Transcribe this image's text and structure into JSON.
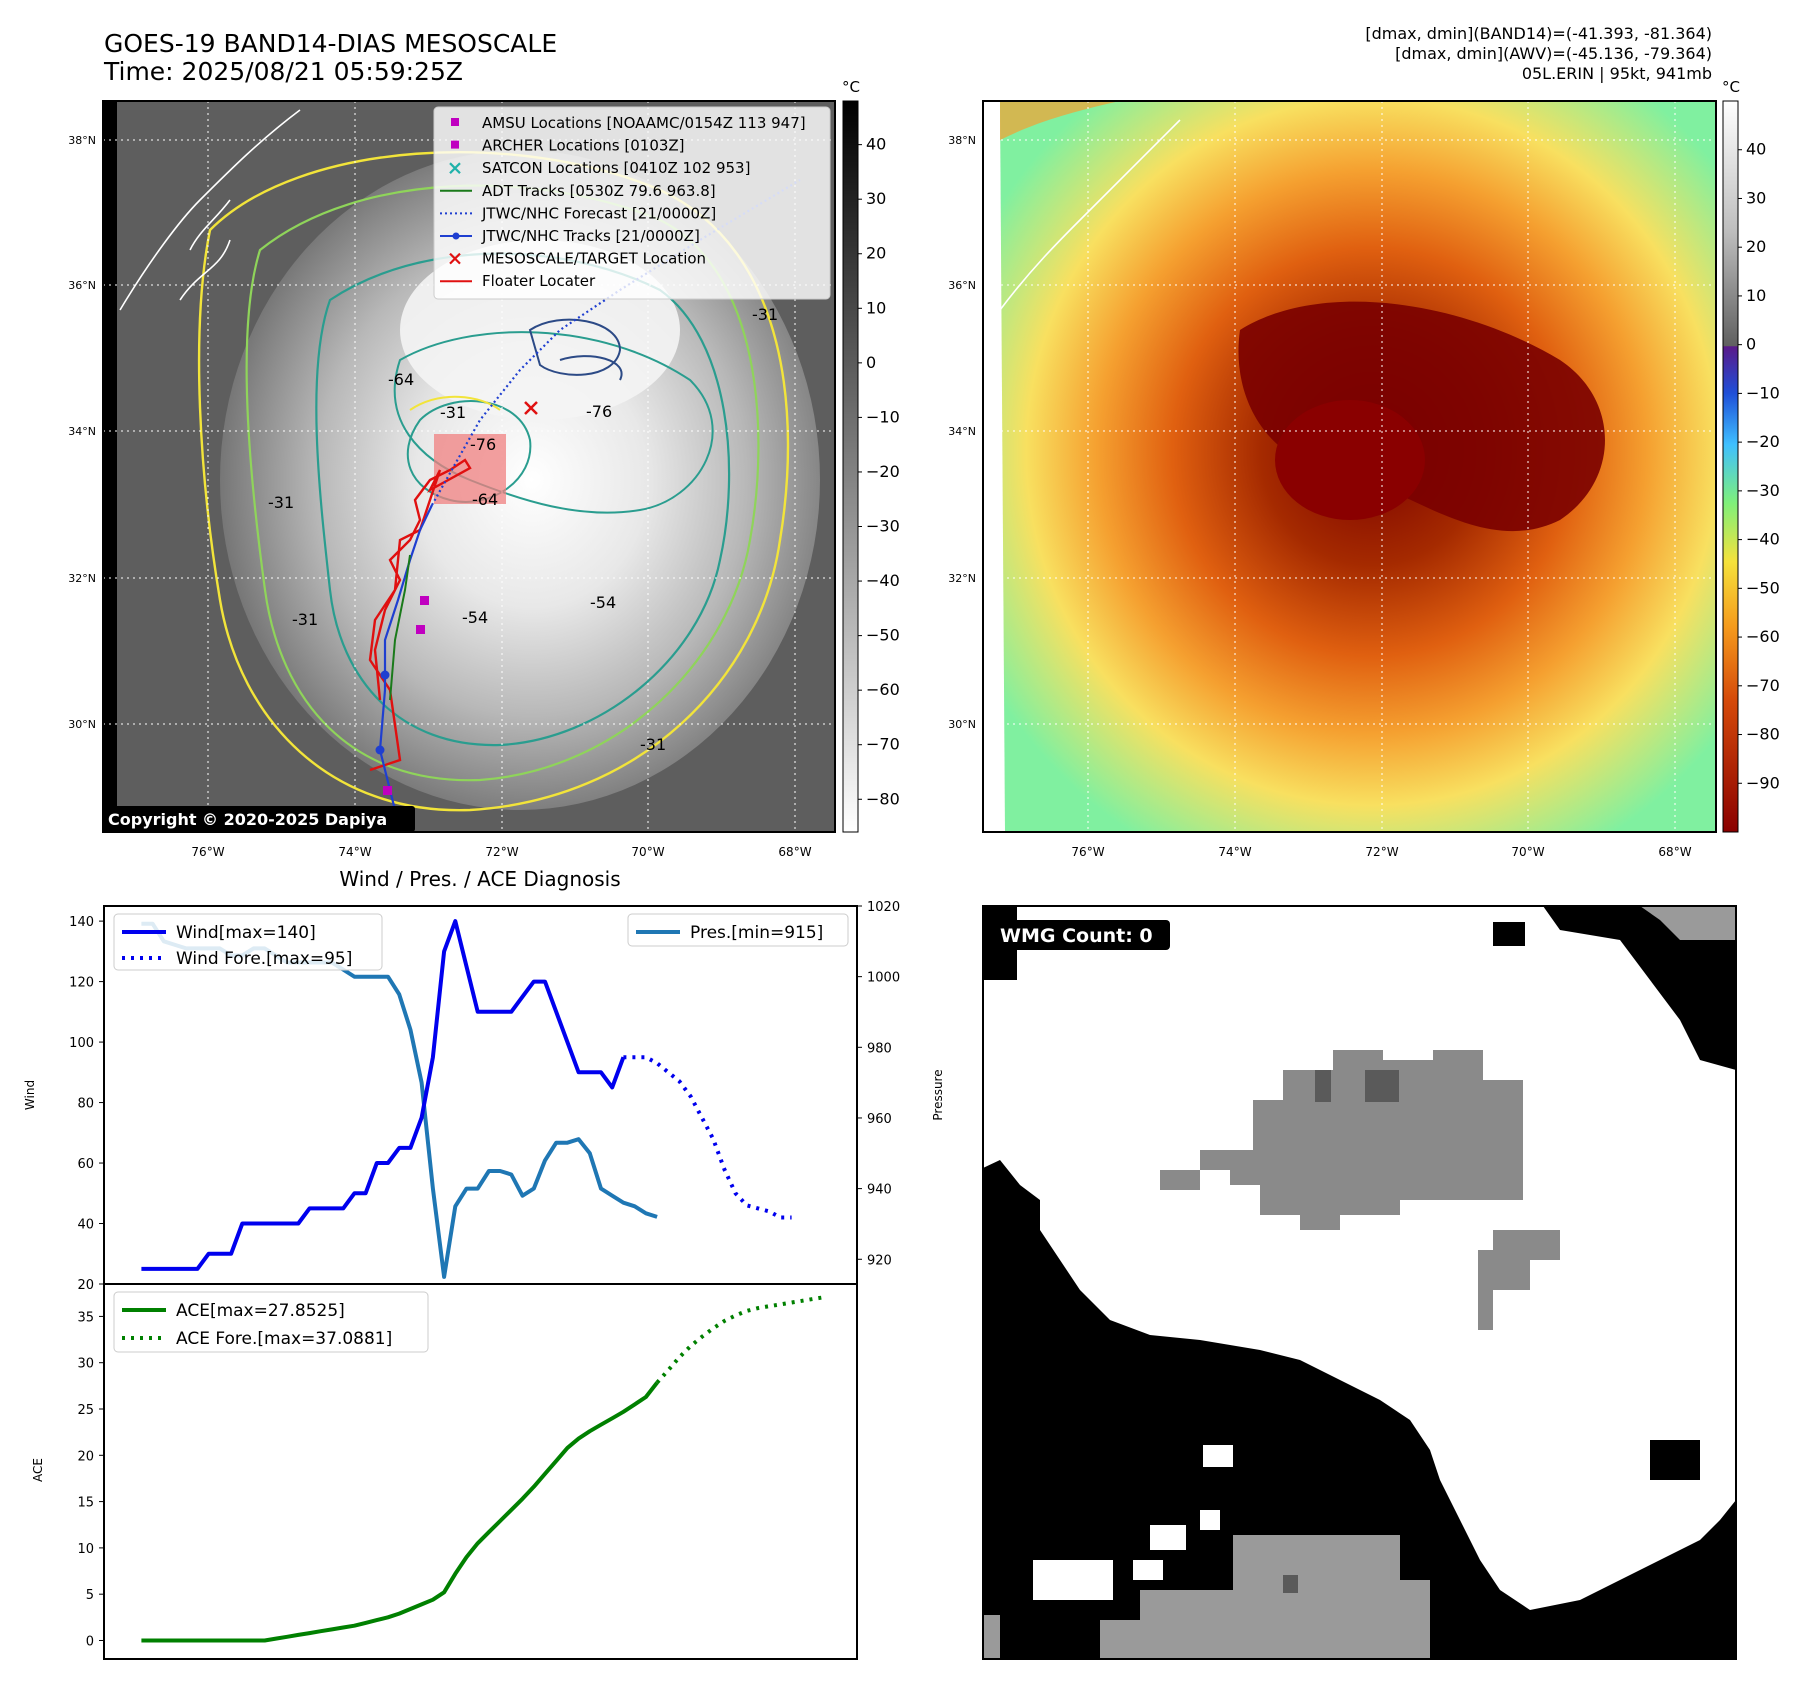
{
  "header": {
    "title_line1": "GOES-19 BAND14-DIAS MESOSCALE",
    "title_line2": "Time: 2025/08/21 05:59:25Z",
    "info_line1": "[dmax, dmin](BAND14)=(-41.393, -81.364)",
    "info_line2": "[dmax, dmin](AWV)=(-45.136, -79.364)",
    "info_line3": "05L.ERIN | 95kt, 941mb"
  },
  "map": {
    "lat_ticks": [
      "38°N",
      "36°N",
      "34°N",
      "32°N",
      "30°N"
    ],
    "lon_ticks": [
      "76°W",
      "74°W",
      "72°W",
      "70°W",
      "68°W"
    ],
    "contour_labels": [
      "-31",
      "-64",
      "-31",
      "-76",
      "-76",
      "-64",
      "-31",
      "-54",
      "-54",
      "-31",
      "-31"
    ],
    "copyright": "Copyright © 2020-2025 Dapiya",
    "colors": {
      "ir_bg": "#6f6f6f",
      "contour_yellow": "#f2e43a",
      "contour_green": "#8fd45a",
      "contour_teal": "#2a9d8f",
      "contour_navy": "#2c4a86"
    }
  },
  "legend_map": [
    {
      "label": "AMSU Locations [NOAAMC/0154Z 113 947]",
      "marker": "square",
      "color": "#c000c0"
    },
    {
      "label": "ARCHER Locations [0103Z]",
      "marker": "square",
      "color": "#c000c0"
    },
    {
      "label": "SATCON Locations [0410Z 102 953]",
      "marker": "x",
      "color": "#20b2aa"
    },
    {
      "label": "ADT Tracks [0530Z 79.6 963.8]",
      "marker": "line",
      "color": "#1a7a1a"
    },
    {
      "label": "JTWC/NHC Forecast [21/0000Z]",
      "marker": "dotted",
      "color": "#1f3fd0"
    },
    {
      "label": "JTWC/NHC Tracks [21/0000Z]",
      "marker": "line-dot",
      "color": "#1f3fd0"
    },
    {
      "label": "MESOSCALE/TARGET Location",
      "marker": "x",
      "color": "#e01010"
    },
    {
      "label": "Floater Locater",
      "marker": "line",
      "color": "#e01010"
    }
  ],
  "colorbar_left": {
    "unit": "°C",
    "ticks": [
      "40",
      "30",
      "20",
      "10",
      "0",
      "−10",
      "−20",
      "−30",
      "−40",
      "−50",
      "−60",
      "−70",
      "−80"
    ]
  },
  "colorbar_right": {
    "unit": "°C",
    "ticks": [
      "40",
      "30",
      "20",
      "10",
      "0",
      "−10",
      "−20",
      "−30",
      "−40",
      "−50",
      "−60",
      "−70",
      "−80",
      "−90"
    ]
  },
  "wmg": {
    "label": "WMG Count: 0"
  },
  "chart_data": [
    {
      "type": "line",
      "title": "Wind / Pres. / ACE Diagnosis",
      "ylabel": "Wind",
      "y2label": "Pressure",
      "ylim": [
        20,
        145
      ],
      "y2lim": [
        913,
        1020
      ],
      "yticks": [
        "20",
        "40",
        "60",
        "80",
        "100",
        "120",
        "140"
      ],
      "y2ticks": [
        "920",
        "940",
        "960",
        "980",
        "1000",
        "1020"
      ],
      "legend_left": [
        "Wind[max=140]",
        "Wind Fore.[max=95]"
      ],
      "legend_right": [
        "Pres.[min=915]"
      ],
      "series": [
        {
          "name": "Wind[max=140]",
          "color": "#0000ee",
          "style": "solid",
          "axis": "left",
          "x": [
            0,
            6,
            12,
            18,
            24,
            30,
            36,
            42,
            48,
            54,
            60,
            66,
            72,
            78,
            84,
            90,
            96,
            102,
            108,
            114,
            120,
            126,
            132,
            138,
            144,
            150,
            156,
            162,
            168,
            174,
            180,
            186,
            192,
            198,
            204,
            210,
            216,
            222,
            228,
            234,
            240,
            246,
            252,
            258
          ],
          "y": [
            25,
            25,
            25,
            25,
            25,
            25,
            30,
            30,
            30,
            40,
            40,
            40,
            40,
            40,
            40,
            45,
            45,
            45,
            45,
            50,
            50,
            60,
            60,
            65,
            65,
            75,
            95,
            130,
            140,
            125,
            110,
            110,
            110,
            110,
            115,
            120,
            120,
            110,
            100,
            90,
            90,
            90,
            85,
            95
          ]
        },
        {
          "name": "Wind Fore.[max=95]",
          "color": "#0000ee",
          "style": "dotted",
          "axis": "left",
          "x": [
            258,
            264,
            270,
            276,
            282,
            288,
            294,
            300,
            306,
            312,
            318,
            324,
            330,
            336,
            342,
            348
          ],
          "y": [
            95,
            95,
            95,
            93,
            90,
            87,
            82,
            75,
            68,
            58,
            50,
            46,
            45,
            44,
            42,
            42
          ]
        },
        {
          "name": "Pres.[min=915]",
          "color": "#1f77b4",
          "style": "solid",
          "axis": "right",
          "x": [
            0,
            6,
            12,
            18,
            24,
            30,
            36,
            42,
            48,
            54,
            60,
            66,
            72,
            78,
            84,
            90,
            96,
            102,
            108,
            114,
            120,
            126,
            132,
            138,
            144,
            150,
            156,
            162,
            168,
            174,
            180,
            186,
            192,
            198,
            204,
            210,
            216,
            222,
            228,
            234,
            240,
            246,
            252,
            258,
            264,
            270,
            276
          ],
          "y": [
            1015,
            1015,
            1010,
            1009,
            1008,
            1008,
            1008,
            1008,
            1006,
            1006,
            1008,
            1008,
            1006,
            1004,
            1004,
            1004,
            1004,
            1004,
            1002,
            1000,
            1000,
            1000,
            1000,
            995,
            985,
            970,
            940,
            915,
            935,
            940,
            940,
            945,
            945,
            944,
            938,
            940,
            948,
            953,
            953,
            954,
            950,
            940,
            938,
            936,
            935,
            933,
            932
          ]
        }
      ]
    },
    {
      "type": "line",
      "ylabel": "ACE",
      "ylim": [
        -2,
        38.5
      ],
      "yticks": [
        "0",
        "5",
        "10",
        "15",
        "20",
        "25",
        "30",
        "35"
      ],
      "legend": [
        "ACE[max=27.8525]",
        "ACE Fore.[max=37.0881]"
      ],
      "series": [
        {
          "name": "ACE[max=27.8525]",
          "color": "#008000",
          "style": "solid",
          "x": [
            0,
            6,
            12,
            18,
            24,
            30,
            36,
            42,
            48,
            54,
            60,
            66,
            72,
            78,
            84,
            90,
            96,
            102,
            108,
            114,
            120,
            126,
            132,
            138,
            144,
            150,
            156,
            162,
            168,
            174,
            180,
            186,
            192,
            198,
            204,
            210,
            216,
            222,
            228,
            234,
            240,
            246,
            252,
            258,
            264,
            270,
            276
          ],
          "y": [
            0,
            0,
            0,
            0,
            0,
            0,
            0,
            0,
            0,
            0,
            0,
            0,
            0.2,
            0.4,
            0.6,
            0.8,
            1.0,
            1.2,
            1.4,
            1.6,
            1.9,
            2.2,
            2.5,
            2.9,
            3.4,
            3.9,
            4.4,
            5.2,
            7.2,
            9.0,
            10.5,
            11.7,
            12.9,
            14.1,
            15.3,
            16.6,
            18.0,
            19.4,
            20.8,
            21.8,
            22.6,
            23.3,
            24.0,
            24.7,
            25.5,
            26.3,
            27.85
          ]
        },
        {
          "name": "ACE Fore.[max=37.0881]",
          "color": "#008000",
          "style": "dotted",
          "x": [
            276,
            282,
            288,
            294,
            300,
            306,
            312,
            318,
            324,
            330,
            336,
            342,
            348,
            354,
            360,
            366
          ],
          "y": [
            27.85,
            29.2,
            30.6,
            31.8,
            32.8,
            33.7,
            34.5,
            35.1,
            35.6,
            35.9,
            36.1,
            36.3,
            36.5,
            36.7,
            36.9,
            37.09
          ]
        }
      ]
    }
  ]
}
